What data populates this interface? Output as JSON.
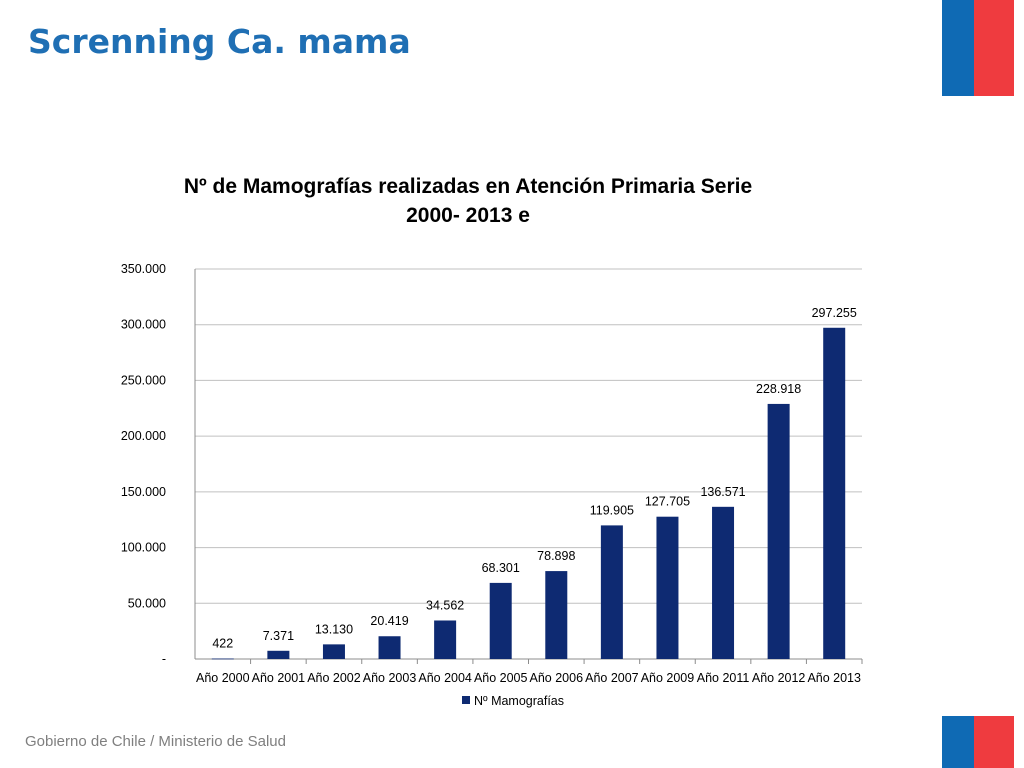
{
  "slide": {
    "title": "Screnning Ca. mama",
    "footer": "Gobierno de Chile / Ministerio de Salud"
  },
  "colors": {
    "title": "#1f6fb4",
    "bar": "#0e2a72",
    "flag_blue": "#0f6ab4",
    "flag_red": "#ef3b3f",
    "grid": "#c0c0c0"
  },
  "chart_data": {
    "type": "bar",
    "title_lines": [
      "Nº de Mamografías realizadas en Atención Primaria Serie",
      "2000- 2013 e"
    ],
    "categories": [
      "Año 2000",
      "Año 2001",
      "Año 2002",
      "Año 2003",
      "Año 2004",
      "Año 2005",
      "Año 2006",
      "Año 2007",
      "Año 2009",
      "Año 2011",
      "Año 2012",
      "Año 2013"
    ],
    "series": [
      {
        "name": "Nº Mamografías",
        "values": [
          422,
          7371,
          13130,
          20419,
          34562,
          68301,
          78898,
          119905,
          127705,
          136571,
          228918,
          297255
        ],
        "labels": [
          "422",
          "7.371",
          "13.130",
          "20.419",
          "34.562",
          "68.301",
          "78.898",
          "119.905",
          "127.705",
          "136.571",
          "228.918",
          "297.255"
        ]
      }
    ],
    "ylim": [
      0,
      350000
    ],
    "yticks": [
      0,
      50000,
      100000,
      150000,
      200000,
      250000,
      300000,
      350000
    ],
    "ytick_labels": [
      "-",
      "50.000",
      "100.000",
      "150.000",
      "200.000",
      "250.000",
      "300.000",
      "350.000"
    ],
    "grid": true,
    "legend_position": "bottom"
  }
}
